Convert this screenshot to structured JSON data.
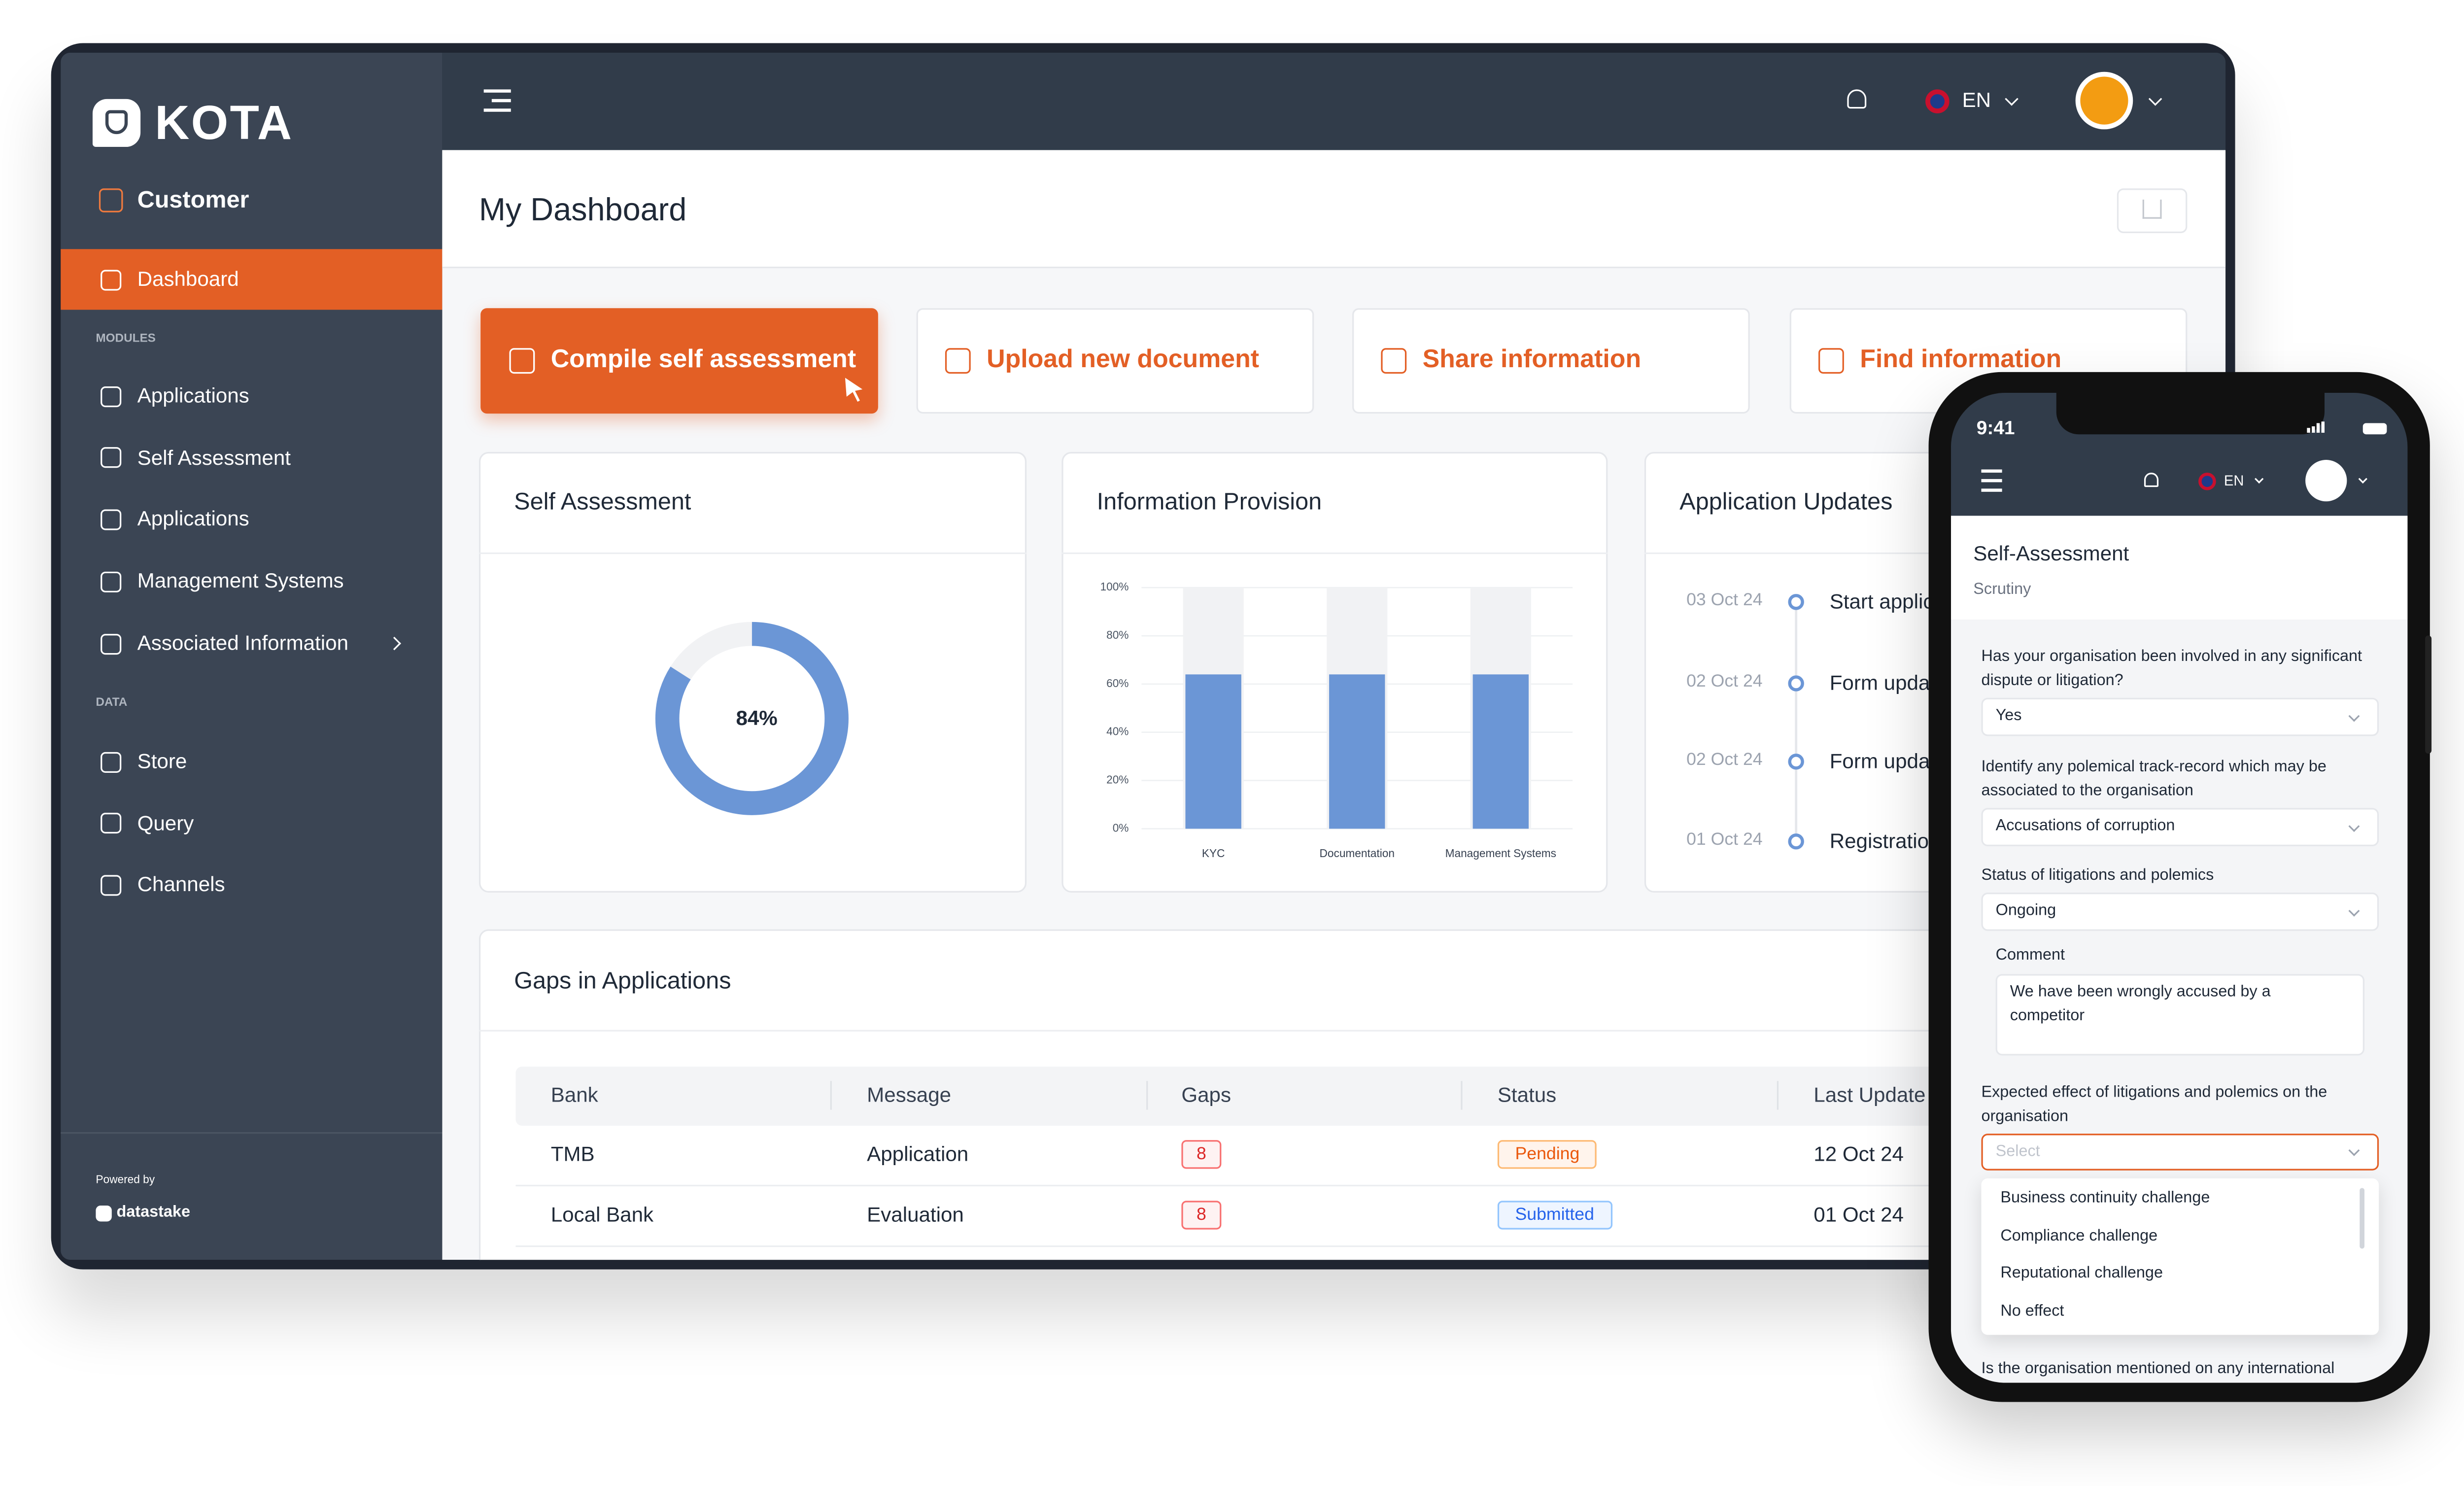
{
  "sidebar": {
    "brand": "KOTA",
    "workspace": "Customer",
    "active": "Dashboard",
    "modules_heading": "MODULES",
    "modules": [
      "Applications",
      "Self Assessment",
      "Applications",
      "Management Systems",
      "Associated Information"
    ],
    "data_heading": "DATA",
    "data_items": [
      "Store",
      "Query",
      "Channels"
    ],
    "powered_by": "Powered by",
    "provider": "datastake"
  },
  "topbar": {
    "language": "EN"
  },
  "header": {
    "title": "My Dashboard"
  },
  "actions": [
    "Compile self assessment",
    "Upload new document",
    "Share information",
    "Find information"
  ],
  "chart_data": [
    {
      "type": "donut",
      "title": "Self Assessment",
      "values": [
        84
      ],
      "value_labels": [
        "84%"
      ],
      "color": "#6b96d6"
    },
    {
      "type": "bar",
      "title": "Information Provision",
      "categories": [
        "KYC",
        "Documentation",
        "Management Systems"
      ],
      "values": [
        64,
        64,
        64
      ],
      "color": "#6b96d6",
      "ylim": [
        0,
        100
      ],
      "yticks": [
        {
          "value": 0,
          "label": "0%"
        },
        {
          "value": 20,
          "label": "20%"
        },
        {
          "value": 40,
          "label": "40%"
        },
        {
          "value": 60,
          "label": "60%"
        },
        {
          "value": 80,
          "label": "80%"
        },
        {
          "value": 100,
          "label": "100%"
        }
      ],
      "grid": true
    }
  ],
  "updates": {
    "title": "Application Updates",
    "items": [
      {
        "date": "03 Oct 24",
        "text": "Start application"
      },
      {
        "date": "02 Oct 24",
        "text": "Form update"
      },
      {
        "date": "02 Oct 24",
        "text": "Form update"
      },
      {
        "date": "01 Oct 24",
        "text": "Registration"
      }
    ]
  },
  "gaps": {
    "title": "Gaps in Applications",
    "columns": [
      "Bank",
      "Message",
      "Gaps",
      "Status",
      "Last Update"
    ],
    "rows": [
      [
        "TMB",
        "Application",
        8,
        "Pending",
        "12 Oct 24"
      ],
      [
        "Local Bank",
        "Evaluation",
        8,
        "Submitted",
        "01 Oct 24"
      ]
    ]
  },
  "phone": {
    "time": "9:41",
    "language": "EN",
    "title": "Self-Assessment",
    "subtitle": "Scrutiny",
    "questions": [
      {
        "label": "Has your organisation been involved in any significant dispute or litigation?",
        "answer": "Yes"
      },
      {
        "label": "Identify any polemical track-record which may be associated to the organisation",
        "answer": "Accusations of corruption"
      },
      {
        "label": "Status of litigations and polemics",
        "answer": "Ongoing"
      }
    ],
    "comment_label": "Comment",
    "comment": "We have been wrongly accused by a competitor",
    "dropdown": {
      "label": "Expected effect of litigations and polemics on the organisation",
      "placeholder": "Select",
      "options": [
        "Business continuity challenge",
        "Compliance challenge",
        "Reputational challenge",
        "No effect"
      ]
    },
    "next_question": "Is the organisation mentioned on any international"
  }
}
